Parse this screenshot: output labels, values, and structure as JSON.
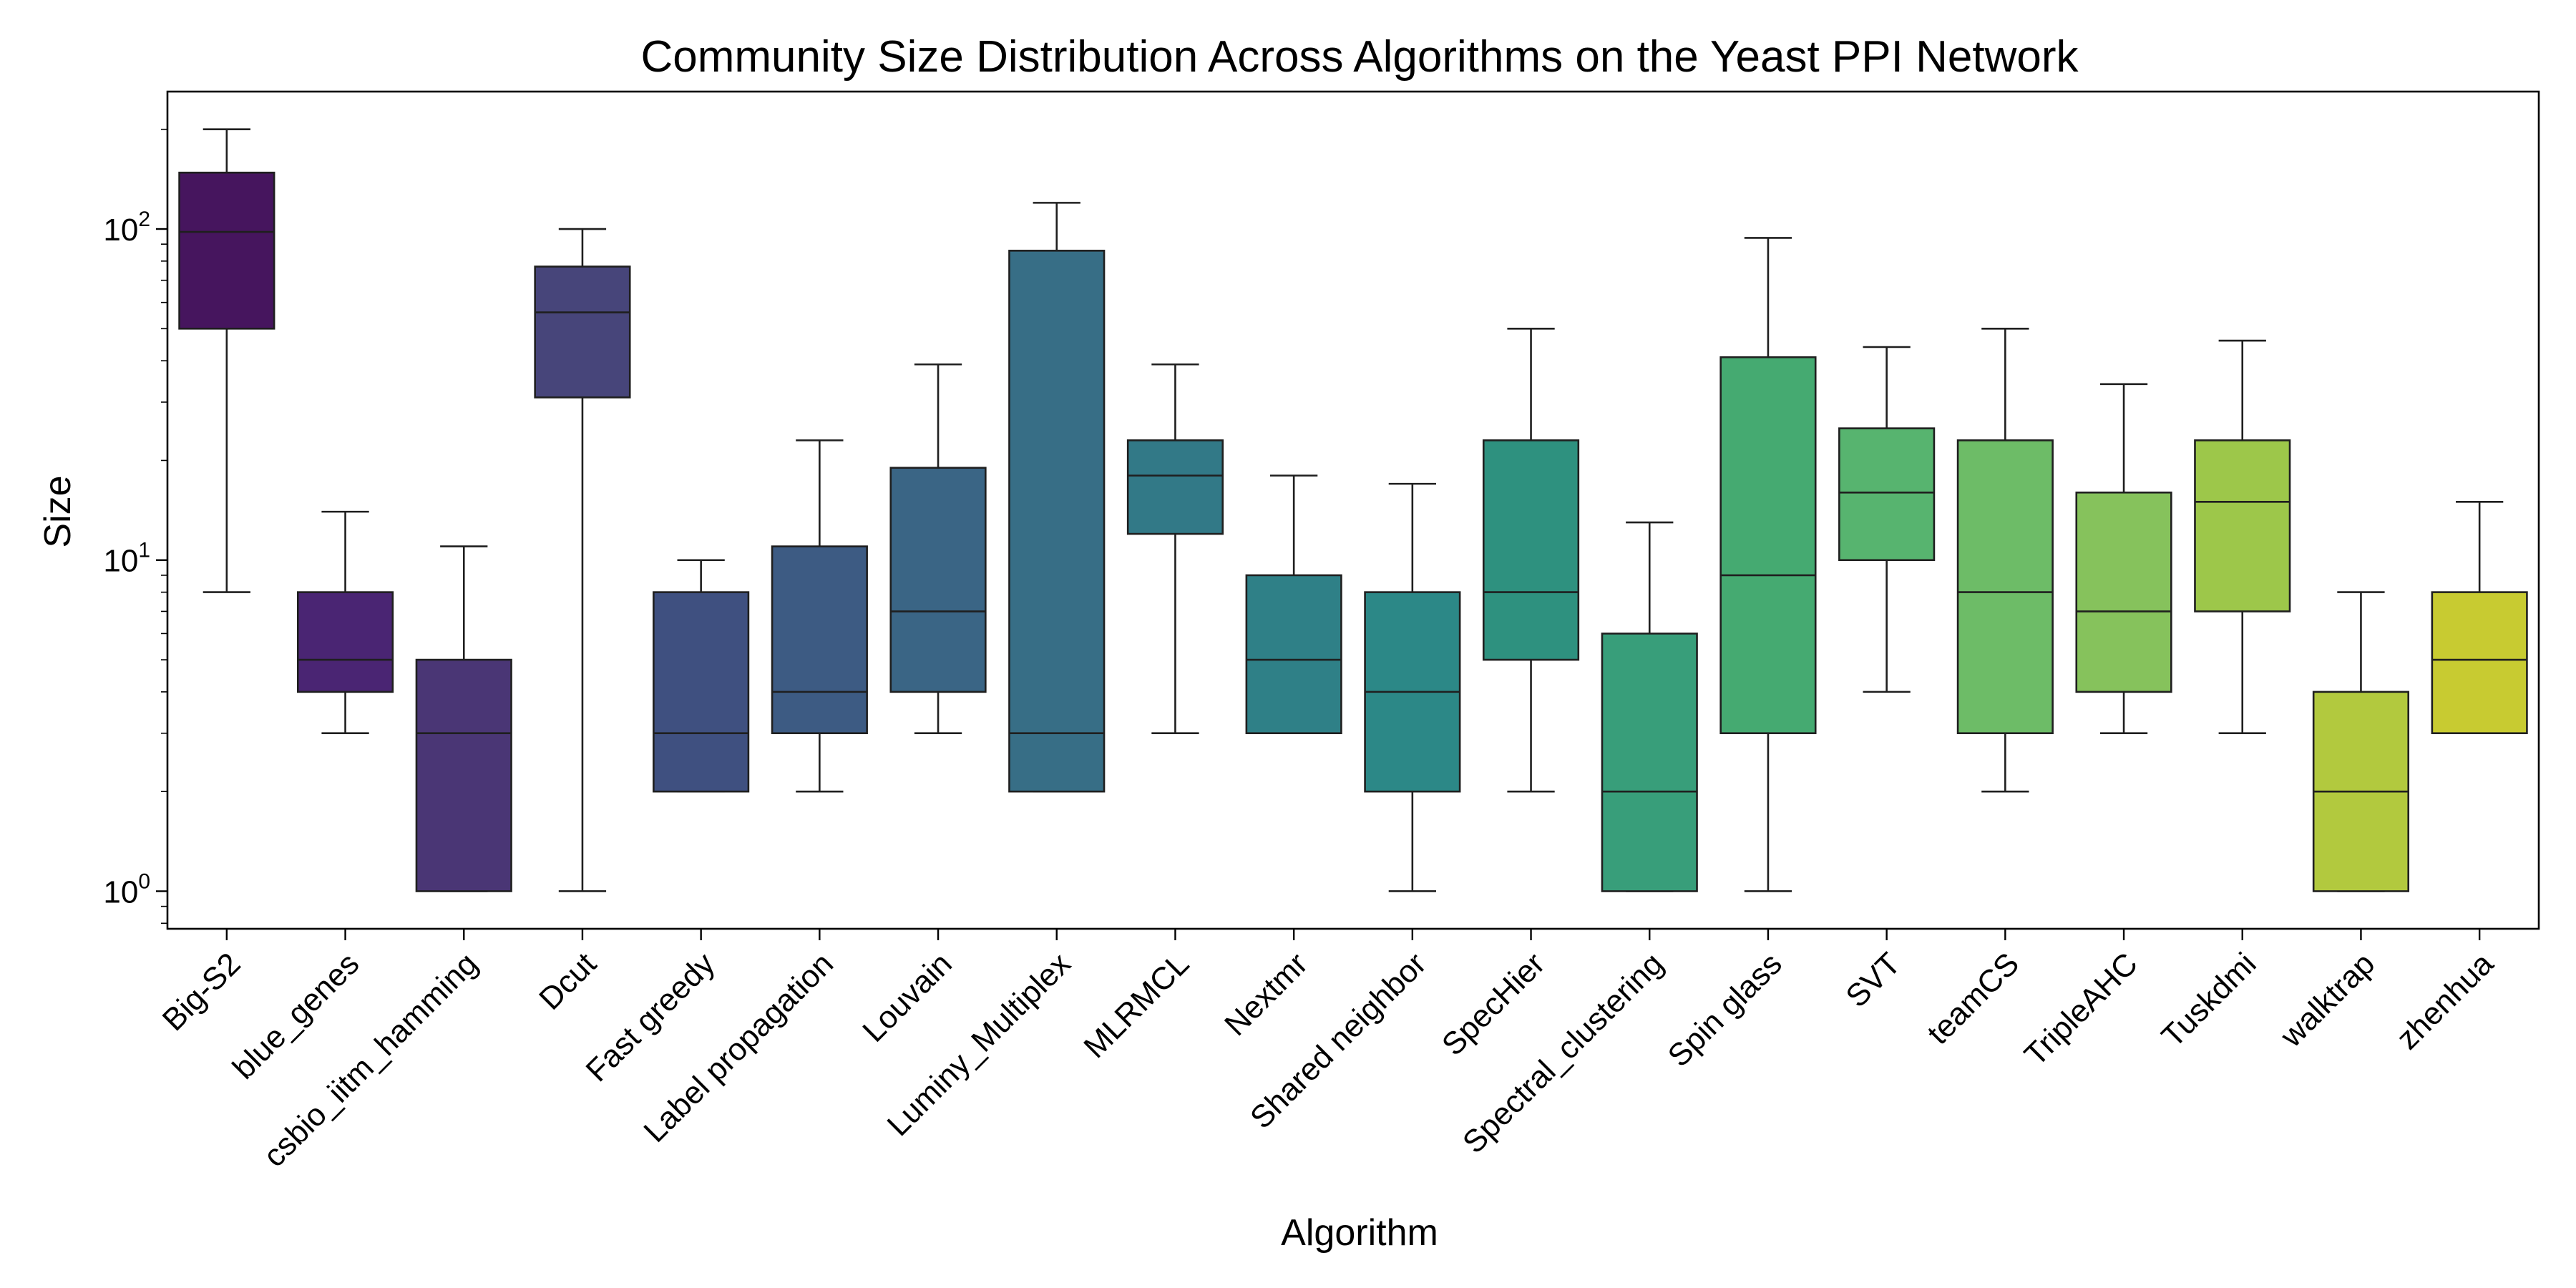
{
  "chart_data": {
    "type": "box",
    "title": "Community Size Distribution Across Algorithms on the Yeast PPI Network",
    "xlabel": "Algorithm",
    "ylabel": "Size",
    "yscale": "log",
    "ylim": [
      0.77,
      260
    ],
    "yticks": [
      {
        "value": 1,
        "base": "10",
        "exp": "0"
      },
      {
        "value": 10,
        "base": "10",
        "exp": "1"
      },
      {
        "value": 100,
        "base": "10",
        "exp": "2"
      }
    ],
    "grid": false,
    "legend": "none",
    "categories": [
      "Big-S2",
      "blue_genes",
      "csbio_iitm_hamming",
      "Dcut",
      "Fast greedy",
      "Label propagation",
      "Louvain",
      "Luminy_Multiplex",
      "MLRMCL",
      "Nextmr",
      "Shared neighbor",
      "SpecHier",
      "Spectral_clustering",
      "Spin glass",
      "SVT",
      "teamCS",
      "TripleAHC",
      "Tuskdmi",
      "walktrap",
      "zhenhua"
    ],
    "boxes": [
      {
        "label": "Big-S2",
        "whisker_low": 8,
        "q1": 50,
        "median": 98,
        "q3": 148,
        "whisker_high": 200,
        "color": "#46155e"
      },
      {
        "label": "blue_genes",
        "whisker_low": 3,
        "q1": 4,
        "median": 5,
        "q3": 8,
        "whisker_high": 14,
        "color": "#4a2573"
      },
      {
        "label": "csbio_iitm_hamming",
        "whisker_low": 1,
        "q1": 1,
        "median": 3,
        "q3": 5,
        "whisker_high": 11,
        "color": "#4a3675"
      },
      {
        "label": "Dcut",
        "whisker_low": 1,
        "q1": 31,
        "median": 56,
        "q3": 77,
        "whisker_high": 100,
        "color": "#47457a"
      },
      {
        "label": "Fast greedy",
        "whisker_low": 2,
        "q1": 2,
        "median": 3,
        "q3": 8,
        "whisker_high": 10,
        "color": "#3f5080"
      },
      {
        "label": "Label propagation",
        "whisker_low": 2,
        "q1": 3,
        "median": 4,
        "q3": 11,
        "whisker_high": 23,
        "color": "#3d5b83"
      },
      {
        "label": "Louvain",
        "whisker_low": 3,
        "q1": 4,
        "median": 7,
        "q3": 19,
        "whisker_high": 39,
        "color": "#3a6585"
      },
      {
        "label": "Luminy_Multiplex",
        "whisker_low": 2,
        "q1": 2,
        "median": 3,
        "q3": 86,
        "whisker_high": 120,
        "color": "#376e86"
      },
      {
        "label": "MLRMCL",
        "whisker_low": 3,
        "q1": 12,
        "median": 18,
        "q3": 23,
        "whisker_high": 39,
        "color": "#327987"
      },
      {
        "label": "Nextmr",
        "whisker_low": 3,
        "q1": 3,
        "median": 5,
        "q3": 9,
        "whisker_high": 18,
        "color": "#2f8087"
      },
      {
        "label": "Shared neighbor",
        "whisker_low": 1,
        "q1": 2,
        "median": 4,
        "q3": 8,
        "whisker_high": 17,
        "color": "#2c8887"
      },
      {
        "label": "SpecHier",
        "whisker_low": 2,
        "q1": 5,
        "median": 8,
        "q3": 23,
        "whisker_high": 50,
        "color": "#2e917f"
      },
      {
        "label": "Spectral_clustering",
        "whisker_low": 1,
        "q1": 1,
        "median": 2,
        "q3": 6,
        "whisker_high": 13,
        "color": "#389e7a"
      },
      {
        "label": "Spin glass",
        "whisker_low": 1,
        "q1": 3,
        "median": 9,
        "q3": 41,
        "whisker_high": 94,
        "color": "#45aa71"
      },
      {
        "label": "SVT",
        "whisker_low": 4,
        "q1": 10,
        "median": 16,
        "q3": 25,
        "whisker_high": 44,
        "color": "#57b46f"
      },
      {
        "label": "teamCS",
        "whisker_low": 2,
        "q1": 3,
        "median": 8,
        "q3": 23,
        "whisker_high": 50,
        "color": "#6dbc67"
      },
      {
        "label": "TripleAHC",
        "whisker_low": 3,
        "q1": 4,
        "median": 7,
        "q3": 16,
        "whisker_high": 34,
        "color": "#86c25c"
      },
      {
        "label": "Tuskdmi",
        "whisker_low": 3,
        "q1": 7,
        "median": 15,
        "q3": 23,
        "whisker_high": 46,
        "color": "#9dc74a"
      },
      {
        "label": "walktrap",
        "whisker_low": 1,
        "q1": 1,
        "median": 2,
        "q3": 4,
        "whisker_high": 8,
        "color": "#b2c93e"
      },
      {
        "label": "zhenhua",
        "whisker_low": 3,
        "q1": 3,
        "median": 5,
        "q3": 8,
        "whisker_high": 15,
        "color": "#c8cb31"
      }
    ]
  }
}
